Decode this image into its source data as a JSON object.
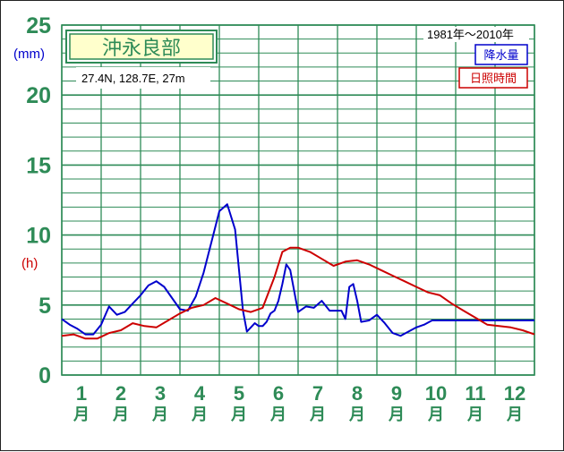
{
  "title": "沖永良部",
  "location": "27.4N,  128.7E,  27m",
  "period": "1981年〜2010年",
  "colors": {
    "grid": "#2e8b57",
    "precip": "#0000cc",
    "sunshine": "#cc0000",
    "title_bg": "#ffffcc",
    "axis_text": "#2e8b57"
  },
  "chart_data": {
    "type": "line",
    "x_label_suffix": "月",
    "x_labels": [
      "1",
      "2",
      "3",
      "4",
      "5",
      "6",
      "7",
      "8",
      "9",
      "10",
      "11",
      "12"
    ],
    "xlim": [
      0.5,
      12.5
    ],
    "ylim": [
      0,
      25
    ],
    "yticks": [
      0,
      5,
      10,
      15,
      20,
      25
    ],
    "units": {
      "precip": "(mm)",
      "sunshine": "(h)"
    },
    "grid": true,
    "legend_position": "top-right",
    "series": [
      {
        "name": "降水量",
        "color": "#0000cc",
        "x": [
          0.5,
          0.7,
          0.9,
          1.1,
          1.3,
          1.5,
          1.7,
          1.9,
          2.1,
          2.3,
          2.5,
          2.7,
          2.9,
          3.1,
          3.3,
          3.5,
          3.7,
          3.9,
          4.1,
          4.3,
          4.5,
          4.7,
          4.9,
          5.0,
          5.1,
          5.2,
          5.3,
          5.4,
          5.5,
          5.6,
          5.7,
          5.8,
          5.9,
          6.0,
          6.1,
          6.2,
          6.3,
          6.5,
          6.7,
          6.9,
          7.1,
          7.3,
          7.5,
          7.6,
          7.7,
          7.8,
          7.9,
          8.0,
          8.1,
          8.3,
          8.5,
          8.7,
          8.9,
          9.1,
          9.3,
          9.5,
          9.7,
          9.9,
          10.1,
          10.2,
          10.3,
          10.4,
          10.5,
          10.7,
          10.9,
          11.1,
          11.3,
          11.5,
          11.7,
          11.9,
          12.1,
          12.3,
          12.5
        ],
        "y": [
          4.0,
          3.6,
          3.3,
          2.9,
          2.9,
          3.6,
          4.9,
          4.3,
          4.5,
          5.1,
          5.7,
          6.4,
          6.7,
          6.3,
          5.5,
          4.7,
          4.6,
          5.6,
          7.3,
          9.5,
          11.7,
          12.2,
          10.4,
          7.5,
          4.6,
          3.1,
          3.4,
          3.7,
          3.5,
          3.5,
          3.8,
          4.4,
          4.6,
          5.3,
          6.5,
          7.9,
          7.5,
          4.5,
          4.9,
          4.8,
          5.3,
          4.6,
          4.6,
          4.6,
          4.0,
          6.3,
          6.5,
          5.3,
          3.8,
          3.9,
          4.3,
          3.7,
          3.0,
          2.8,
          3.1,
          3.4,
          3.6,
          3.9,
          3.9,
          3.9,
          3.9,
          3.9,
          3.9,
          3.9,
          3.9,
          3.9,
          3.9,
          3.9,
          3.9,
          3.9,
          3.9,
          3.9,
          3.9
        ]
      },
      {
        "name": "日照時間",
        "color": "#cc0000",
        "x": [
          0.5,
          0.8,
          1.1,
          1.4,
          1.7,
          2.0,
          2.3,
          2.6,
          2.9,
          3.2,
          3.5,
          3.8,
          4.1,
          4.4,
          4.7,
          5.0,
          5.3,
          5.6,
          5.9,
          6.1,
          6.3,
          6.5,
          6.8,
          7.1,
          7.4,
          7.7,
          8.0,
          8.3,
          8.6,
          8.9,
          9.2,
          9.5,
          9.8,
          10.1,
          10.4,
          10.7,
          11.0,
          11.3,
          11.6,
          11.9,
          12.2,
          12.5
        ],
        "y": [
          2.8,
          2.9,
          2.6,
          2.6,
          3.0,
          3.2,
          3.7,
          3.5,
          3.4,
          3.9,
          4.4,
          4.8,
          5.0,
          5.5,
          5.1,
          4.7,
          4.5,
          4.8,
          7.0,
          8.8,
          9.1,
          9.1,
          8.8,
          8.3,
          7.8,
          8.1,
          8.2,
          7.9,
          7.5,
          7.1,
          6.7,
          6.3,
          5.9,
          5.7,
          5.1,
          4.6,
          4.1,
          3.6,
          3.5,
          3.4,
          3.2,
          2.9
        ]
      }
    ]
  }
}
